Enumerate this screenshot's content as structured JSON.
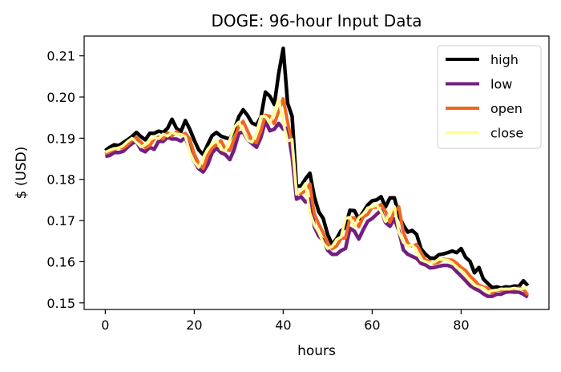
{
  "chart_data": {
    "type": "line",
    "title": "DOGE: 96-hour Input Data",
    "xlabel": "hours",
    "ylabel": "$ (USD)",
    "xlim": [
      -4.75,
      99.75
    ],
    "ylim": [
      0.1484,
      0.2148
    ],
    "xticks": [
      0,
      20,
      40,
      60,
      80
    ],
    "yticks": [
      0.15,
      0.16,
      0.17,
      0.18,
      0.19,
      0.2,
      0.21
    ],
    "ytick_labels": [
      "0.15",
      "0.16",
      "0.17",
      "0.18",
      "0.19",
      "0.20",
      "0.21"
    ],
    "legend_position": "top-right",
    "grid": false,
    "x": [
      0,
      1,
      2,
      3,
      4,
      5,
      6,
      7,
      8,
      9,
      10,
      11,
      12,
      13,
      14,
      15,
      16,
      17,
      18,
      19,
      20,
      21,
      22,
      23,
      24,
      25,
      26,
      27,
      28,
      29,
      30,
      31,
      32,
      33,
      34,
      35,
      36,
      37,
      38,
      39,
      40,
      41,
      42,
      43,
      44,
      45,
      46,
      47,
      48,
      49,
      50,
      51,
      52,
      53,
      54,
      55,
      56,
      57,
      58,
      59,
      60,
      61,
      62,
      63,
      64,
      65,
      66,
      67,
      68,
      69,
      70,
      71,
      72,
      73,
      74,
      75,
      76,
      77,
      78,
      79,
      80,
      81,
      82,
      83,
      84,
      85,
      86,
      87,
      88,
      89,
      90,
      91,
      92,
      93,
      94,
      95
    ],
    "series": [
      {
        "name": "high",
        "color": "#000000",
        "values": [
          0.187,
          0.1878,
          0.1884,
          0.1882,
          0.1889,
          0.1896,
          0.1904,
          0.1914,
          0.1904,
          0.1896,
          0.1912,
          0.1912,
          0.1917,
          0.1914,
          0.1924,
          0.1946,
          0.1924,
          0.1916,
          0.1943,
          0.1922,
          0.1895,
          0.1872,
          0.186,
          0.1884,
          0.1906,
          0.1914,
          0.1905,
          0.1901,
          0.1898,
          0.1921,
          0.1952,
          0.1969,
          0.1955,
          0.1937,
          0.1932,
          0.1952,
          0.2012,
          0.2002,
          0.1982,
          0.2058,
          0.2118,
          0.1985,
          0.1953,
          0.1783,
          0.1784,
          0.1801,
          0.1815,
          0.1758,
          0.1721,
          0.1705,
          0.1666,
          0.1642,
          0.1656,
          0.1675,
          0.1684,
          0.1725,
          0.1724,
          0.1704,
          0.1721,
          0.1738,
          0.1748,
          0.175,
          0.1758,
          0.1733,
          0.1755,
          0.1755,
          0.1712,
          0.1689,
          0.1672,
          0.1676,
          0.1666,
          0.1631,
          0.1618,
          0.1609,
          0.1608,
          0.1617,
          0.1619,
          0.1622,
          0.1626,
          0.1622,
          0.1632,
          0.1611,
          0.1601,
          0.1573,
          0.1586,
          0.1558,
          0.1547,
          0.1537,
          0.1539,
          0.1536,
          0.1539,
          0.1538,
          0.1541,
          0.154,
          0.1554,
          0.1542
        ]
      },
      {
        "name": "low",
        "color": "#721f81",
        "values": [
          0.1856,
          0.1858,
          0.1865,
          0.1865,
          0.1868,
          0.1878,
          0.1887,
          0.1892,
          0.1872,
          0.1867,
          0.1878,
          0.1873,
          0.1893,
          0.1892,
          0.1902,
          0.1898,
          0.1898,
          0.1893,
          0.1902,
          0.1872,
          0.1843,
          0.1826,
          0.1818,
          0.1835,
          0.1864,
          0.1876,
          0.1865,
          0.186,
          0.1848,
          0.1873,
          0.1912,
          0.1915,
          0.1896,
          0.1887,
          0.1878,
          0.1902,
          0.1942,
          0.1918,
          0.1922,
          0.1936,
          0.1922,
          0.1925,
          0.1855,
          0.1752,
          0.1758,
          0.1745,
          0.1752,
          0.1685,
          0.1662,
          0.1652,
          0.1628,
          0.1618,
          0.1618,
          0.1627,
          0.1632,
          0.1681,
          0.1674,
          0.1655,
          0.1678,
          0.1698,
          0.1705,
          0.1715,
          0.1725,
          0.1695,
          0.1686,
          0.1704,
          0.1675,
          0.1629,
          0.1618,
          0.1613,
          0.1608,
          0.1596,
          0.1592,
          0.1585,
          0.1586,
          0.1589,
          0.1591,
          0.1591,
          0.1587,
          0.1576,
          0.1565,
          0.1554,
          0.1542,
          0.1535,
          0.153,
          0.1522,
          0.1516,
          0.1516,
          0.1521,
          0.1521,
          0.1526,
          0.1527,
          0.1526,
          0.1526,
          0.1521,
          0.1514
        ]
      },
      {
        "name": "open",
        "color": "#f1651f",
        "values": [
          0.1862,
          0.1868,
          0.1872,
          0.1877,
          0.1876,
          0.1884,
          0.1895,
          0.1902,
          0.1891,
          0.1877,
          0.1882,
          0.1898,
          0.1903,
          0.1898,
          0.1913,
          0.1905,
          0.1916,
          0.1908,
          0.1912,
          0.1898,
          0.1862,
          0.1839,
          0.1827,
          0.1857,
          0.1876,
          0.1884,
          0.1894,
          0.1873,
          0.187,
          0.1899,
          0.1928,
          0.1941,
          0.1917,
          0.1895,
          0.1889,
          0.1918,
          0.1956,
          0.1953,
          0.1935,
          0.1965,
          0.1996,
          0.1939,
          0.1887,
          0.1768,
          0.1766,
          0.1772,
          0.1789,
          0.1716,
          0.1691,
          0.167,
          0.1645,
          0.1631,
          0.1638,
          0.1656,
          0.1658,
          0.1706,
          0.1707,
          0.1685,
          0.1709,
          0.1715,
          0.1732,
          0.1732,
          0.1739,
          0.1722,
          0.1696,
          0.1722,
          0.1733,
          0.1672,
          0.1645,
          0.1638,
          0.1642,
          0.1622,
          0.1604,
          0.16,
          0.1596,
          0.1599,
          0.1606,
          0.1605,
          0.1604,
          0.1597,
          0.1586,
          0.1579,
          0.1565,
          0.1555,
          0.1543,
          0.1539,
          0.1536,
          0.1524,
          0.1531,
          0.153,
          0.1534,
          0.1533,
          0.1534,
          0.1536,
          0.1533,
          0.1519
        ]
      },
      {
        "name": "close",
        "color": "#fcfd9c",
        "values": [
          0.1866,
          0.1871,
          0.1875,
          0.1876,
          0.1882,
          0.1892,
          0.19,
          0.189,
          0.1879,
          0.1884,
          0.1896,
          0.1901,
          0.1899,
          0.191,
          0.1905,
          0.1914,
          0.191,
          0.1909,
          0.1904,
          0.1866,
          0.1842,
          0.1829,
          0.1853,
          0.1873,
          0.1885,
          0.1895,
          0.1873,
          0.1869,
          0.1897,
          0.1927,
          0.1939,
          0.1918,
          0.1895,
          0.189,
          0.1915,
          0.1953,
          0.1953,
          0.1936,
          0.1964,
          0.1996,
          0.1938,
          0.1893,
          0.1897,
          0.1764,
          0.1773,
          0.179,
          0.1718,
          0.1689,
          0.1671,
          0.1646,
          0.1632,
          0.1637,
          0.1654,
          0.166,
          0.1705,
          0.1708,
          0.1684,
          0.1707,
          0.1716,
          0.1731,
          0.1733,
          0.1738,
          0.1722,
          0.1697,
          0.1721,
          0.1734,
          0.1672,
          0.1647,
          0.1638,
          0.1642,
          0.1623,
          0.1604,
          0.16,
          0.1597,
          0.1599,
          0.1606,
          0.1605,
          0.1604,
          0.1597,
          0.1586,
          0.1579,
          0.1566,
          0.1555,
          0.1543,
          0.1539,
          0.1536,
          0.1526,
          0.153,
          0.1531,
          0.1534,
          0.1533,
          0.1534,
          0.1536,
          0.1533,
          0.1535,
          0.1538
        ]
      }
    ]
  }
}
